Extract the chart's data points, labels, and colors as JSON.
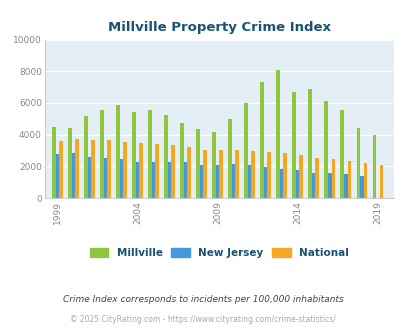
{
  "title": "Millville Property Crime Index",
  "subtitle": "Crime Index corresponds to incidents per 100,000 inhabitants",
  "footer": "© 2025 CityRating.com - https://www.cityrating.com/crime-statistics/",
  "years": [
    1999,
    2000,
    2001,
    2002,
    2003,
    2004,
    2005,
    2006,
    2007,
    2008,
    2009,
    2010,
    2011,
    2012,
    2013,
    2014,
    2015,
    2016,
    2017,
    2018,
    2019,
    2020
  ],
  "millville": [
    4500,
    4450,
    5200,
    5550,
    5850,
    5450,
    5550,
    5250,
    4750,
    4350,
    4150,
    5000,
    6000,
    7350,
    8050,
    6700,
    6850,
    6100,
    5550,
    4400,
    4000,
    0
  ],
  "new_jersey": [
    2800,
    2850,
    2600,
    2550,
    2450,
    2300,
    2250,
    2250,
    2250,
    2100,
    2100,
    2150,
    2100,
    1950,
    1850,
    1750,
    1600,
    1550,
    1500,
    1400,
    0,
    0
  ],
  "national": [
    3600,
    3700,
    3650,
    3650,
    3550,
    3450,
    3400,
    3350,
    3200,
    3050,
    3000,
    3000,
    2950,
    2900,
    2850,
    2700,
    2550,
    2450,
    2350,
    2200,
    2100,
    0
  ],
  "color_millville": "#8dc63f",
  "color_nj": "#4499dd",
  "color_national": "#f5a623",
  "bg_color": "#e4eff5",
  "ylim": [
    0,
    10000
  ],
  "yticks": [
    0,
    2000,
    4000,
    6000,
    8000,
    10000
  ],
  "xtick_labels": [
    "1999",
    "2004",
    "2009",
    "2014",
    "2019"
  ],
  "xtick_positions": [
    1999,
    2004,
    2009,
    2014,
    2019
  ],
  "title_color": "#1a5276",
  "axis_label_color": "#888888",
  "legend_labels": [
    "Millville",
    "New Jersey",
    "National"
  ],
  "subtitle_color": "#444444",
  "footer_color": "#aaaaaa"
}
